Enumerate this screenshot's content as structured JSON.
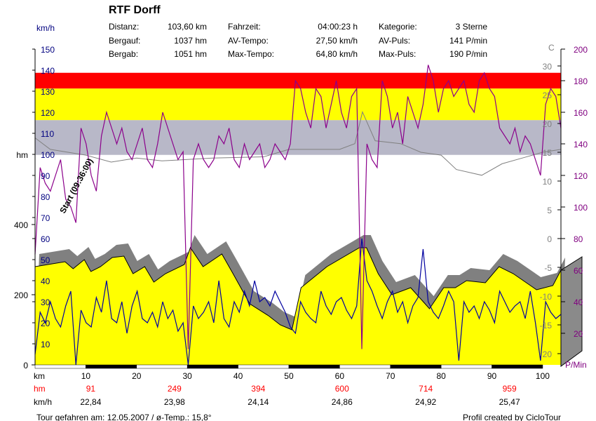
{
  "header": {
    "title": "RTF Dorff",
    "speed_unit": "km/h",
    "stats": [
      {
        "label": "Distanz:",
        "value": "103,60 km"
      },
      {
        "label": "Bergauf:",
        "value": "1037 hm"
      },
      {
        "label": "Bergab:",
        "value": "1051 hm"
      },
      {
        "label": "Fahrzeit:",
        "value": "04:00:23 h"
      },
      {
        "label": "AV-Tempo:",
        "value": "27,50 km/h"
      },
      {
        "label": "Max-Tempo:",
        "value": "64,80 km/h"
      },
      {
        "label": "Kategorie:",
        "value": "3 Sterne"
      },
      {
        "label": "AV-Puls:",
        "value": "141 P/min"
      },
      {
        "label": "Max-Puls:",
        "value": "190 P/min"
      }
    ]
  },
  "footer": {
    "left": "Tour gefahren am: 12.05.2007  /  ø-Temp.: 15,8°",
    "right": "Profil created by CicloTour"
  },
  "chart_data": {
    "type": "line",
    "title": "RTF Dorff",
    "annotation": "Start (09:36:00)",
    "xlabel": "km",
    "xlim": [
      0,
      103.6
    ],
    "x_ticks": [
      "10",
      "20",
      "30",
      "40",
      "50",
      "60",
      "70",
      "80",
      "90",
      "100"
    ],
    "axes": {
      "speed": {
        "label": "km/h",
        "range": [
          0,
          150
        ],
        "ticks": [
          "10",
          "20",
          "30",
          "40",
          "50",
          "60",
          "70",
          "80",
          "90",
          "100",
          "110",
          "120",
          "130",
          "140",
          "150"
        ],
        "color": "#000080"
      },
      "elevation": {
        "label": "hm",
        "range": [
          0,
          900
        ],
        "ticks": [
          "0",
          "200",
          "400"
        ]
      },
      "temperature": {
        "label": "C",
        "range": [
          -22,
          33
        ],
        "ticks": [
          "-20",
          "-15",
          "-10",
          "-5",
          "0",
          "5",
          "10",
          "15",
          "20",
          "25",
          "30"
        ],
        "color": "#808080"
      },
      "pulse": {
        "label": "P/Min",
        "range": [
          0,
          200
        ],
        "ticks": [
          "20",
          "40",
          "60",
          "80",
          "100",
          "120",
          "140",
          "160",
          "180",
          "200"
        ],
        "color": "#800080"
      }
    },
    "pulse_zones": [
      {
        "from": 175,
        "to": 185,
        "color": "#ff0000"
      },
      {
        "from": 155,
        "to": 175,
        "color": "#ffff00"
      },
      {
        "from": 133,
        "to": 155,
        "color": "#b8b8c8"
      }
    ],
    "summary_rows": {
      "hm_label": "hm",
      "hm": [
        {
          "km": 10,
          "v": "91"
        },
        {
          "km": 26.5,
          "v": "249"
        },
        {
          "km": 43,
          "v": "394"
        },
        {
          "km": 59.5,
          "v": "600"
        },
        {
          "km": 76,
          "v": "714"
        },
        {
          "km": 92.5,
          "v": "959"
        }
      ],
      "kmh_label": "km/h",
      "kmh": [
        "22,84",
        "23,98",
        "24,14",
        "24,86",
        "24,92",
        "25,47"
      ]
    },
    "elevation": [
      [
        0,
        280
      ],
      [
        5.9,
        294
      ],
      [
        7.5,
        274
      ],
      [
        9.7,
        300
      ],
      [
        11,
        266
      ],
      [
        12.9,
        280
      ],
      [
        15.2,
        306
      ],
      [
        17.5,
        310
      ],
      [
        19.3,
        260
      ],
      [
        21.6,
        280
      ],
      [
        23.4,
        236
      ],
      [
        25.7,
        260
      ],
      [
        29.4,
        286
      ],
      [
        30.6,
        334
      ],
      [
        33.1,
        280
      ],
      [
        36.8,
        316
      ],
      [
        39,
        260
      ],
      [
        42.3,
        174
      ],
      [
        46,
        140
      ],
      [
        48.3,
        114
      ],
      [
        50.6,
        100
      ],
      [
        52.4,
        220
      ],
      [
        57.5,
        280
      ],
      [
        63.9,
        334
      ],
      [
        65.3,
        334
      ],
      [
        67.6,
        260
      ],
      [
        70.3,
        200
      ],
      [
        74,
        220
      ],
      [
        77.7,
        160
      ],
      [
        80.5,
        220
      ],
      [
        82.8,
        220
      ],
      [
        85,
        240
      ],
      [
        88.7,
        234
      ],
      [
        91.4,
        280
      ],
      [
        94.2,
        260
      ],
      [
        98.8,
        214
      ],
      [
        102,
        226
      ],
      [
        103.6,
        270
      ]
    ],
    "speed_per_km": [
      5,
      25,
      20,
      30,
      22,
      18,
      28,
      35,
      0,
      26,
      20,
      18,
      32,
      25,
      40,
      22,
      20,
      30,
      15,
      28,
      35,
      22,
      20,
      25,
      18,
      30,
      22,
      26,
      16,
      20,
      0,
      28,
      22,
      25,
      30,
      20,
      40,
      22,
      18,
      30,
      25,
      35,
      28,
      40,
      30,
      32,
      28,
      35,
      30,
      25,
      18,
      15,
      30,
      25,
      22,
      20,
      35,
      28,
      24,
      30,
      32,
      26,
      22,
      28,
      60,
      40,
      35,
      28,
      22,
      30,
      35,
      25,
      30,
      20,
      28,
      32,
      55,
      30,
      25,
      22,
      28,
      35,
      30,
      2,
      30,
      25,
      28,
      22,
      30,
      26,
      20,
      35,
      30,
      25,
      28,
      30,
      22,
      35,
      20,
      2,
      30,
      25,
      22,
      24
    ],
    "pulse_per_km": [
      70,
      125,
      115,
      110,
      120,
      130,
      105,
      100,
      90,
      150,
      140,
      120,
      110,
      145,
      160,
      150,
      140,
      150,
      135,
      130,
      140,
      150,
      130,
      125,
      140,
      160,
      150,
      140,
      130,
      135,
      10,
      130,
      140,
      130,
      125,
      130,
      145,
      140,
      150,
      130,
      125,
      140,
      130,
      135,
      140,
      125,
      130,
      140,
      135,
      130,
      140,
      180,
      175,
      160,
      150,
      175,
      170,
      150,
      165,
      180,
      160,
      150,
      170,
      175,
      10,
      140,
      130,
      125,
      180,
      170,
      150,
      160,
      140,
      170,
      160,
      150,
      165,
      190,
      180,
      160,
      175,
      180,
      170,
      175,
      180,
      165,
      160,
      180,
      185,
      175,
      170,
      150,
      145,
      140,
      150,
      135,
      145,
      140,
      130,
      120,
      165,
      175,
      170,
      150
    ],
    "temperature": [
      [
        0,
        17.5
      ],
      [
        3,
        15.5
      ],
      [
        10,
        14.5
      ],
      [
        15,
        13.3
      ],
      [
        20,
        14
      ],
      [
        25,
        13.5
      ],
      [
        35,
        14
      ],
      [
        45,
        14.2
      ],
      [
        50,
        15.5
      ],
      [
        60,
        15.5
      ],
      [
        63,
        16.5
      ],
      [
        64.5,
        22
      ],
      [
        67,
        17
      ],
      [
        72,
        16.5
      ],
      [
        76,
        15
      ],
      [
        80,
        14.5
      ],
      [
        83,
        12
      ],
      [
        88,
        11
      ],
      [
        92,
        13
      ],
      [
        96,
        14
      ],
      [
        100,
        15
      ],
      [
        103.6,
        15.5
      ]
    ],
    "colors": {
      "elevation": "#ffff00",
      "shadow": "#808080",
      "speed": "#0000a0",
      "pulse": "#8b008b",
      "temperature": "#808080"
    }
  }
}
